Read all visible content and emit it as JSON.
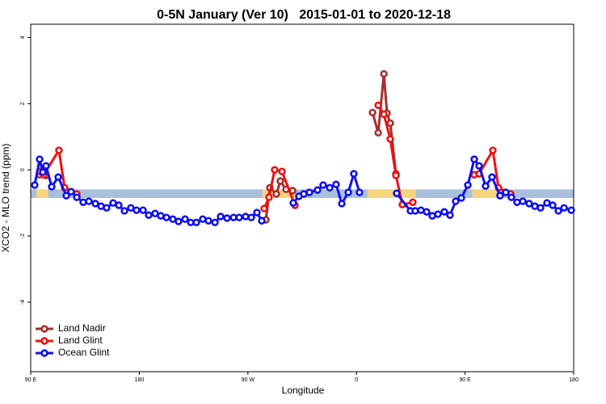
{
  "chart_data": {
    "type": "line",
    "title": "0-5N January (Ver 10)   2015-01-01 to 2020-12-18",
    "x_label": "Longitude",
    "y_label": "XCO2 - MLO trend (ppm)",
    "xlim": [
      90,
      540
    ],
    "ylim": [
      -6.1,
      4.4
    ],
    "xticks": [
      {
        "value": 90,
        "label": "90 E"
      },
      {
        "value": 180,
        "label": "180"
      },
      {
        "value": 270,
        "label": "90 W"
      },
      {
        "value": 360,
        "label": "0"
      },
      {
        "value": 450,
        "label": "90 E"
      },
      {
        "value": 540,
        "label": "180"
      }
    ],
    "yticks": [
      4,
      2,
      0,
      -2,
      -4
    ],
    "legend": "bottom-left",
    "band": {
      "range": [
        -0.85,
        -0.59
      ],
      "color": "#a9bfdc",
      "span_color": "#f7d57e",
      "spans": [
        [
          94.7,
          104.7
        ],
        [
          282,
          309
        ],
        [
          369,
          409
        ],
        [
          456,
          476
        ]
      ]
    },
    "series": [
      {
        "name": "Land Nadir",
        "color": "#a3302f",
        "x": [
          97.4,
          100,
          102.7,
          null,
          284.9,
          288.2,
          293.6,
          296.9,
          301.6,
          307.0,
          null,
          373.3,
          378.0,
          382.7,
          385.3,
          388.0,
          392.7
        ],
        "values": [
          -0.15,
          -0.05,
          -0.17,
          null,
          -1.51,
          -0.54,
          -0.73,
          -0.34,
          -0.59,
          -0.63,
          null,
          1.73,
          1.12,
          2.9,
          1.71,
          1.41,
          -0.12
        ]
      },
      {
        "name": "Land Glint",
        "color": "#ee1111",
        "x": [
          97.4,
          100.7,
          113.4,
          118.1,
          128.2,
          null,
          283.5,
          287.5,
          292.2,
          298.3,
          309.0,
          null,
          378.0,
          382.7,
          388.0,
          392.7,
          398.0,
          406.7,
          null,
          457.6,
          461.6,
          473.0,
          477.7,
          487.8
        ],
        "values": [
          -0.05,
          -0.15,
          0.59,
          -0.54,
          -0.73,
          null,
          -1.17,
          -0.83,
          0.0,
          -0.05,
          -1.07,
          null,
          1.95,
          1.68,
          0.93,
          -0.17,
          -1.05,
          -0.98,
          null,
          -0.15,
          -0.12,
          0.59,
          -0.54,
          -0.73
        ]
      },
      {
        "name": "Ocean Glint",
        "color": "#1111ee",
        "x": [
          93.3,
          97.4,
          100.0,
          102.7,
          107.4,
          112.8,
          119.5,
          123.5,
          128.2,
          133.5,
          138.2,
          143.6,
          148.3,
          152.9,
          158.3,
          163.0,
          167.7,
          173.0,
          177.7,
          183.1,
          187.8,
          193.1,
          197.8,
          202.5,
          207.8,
          212.5,
          217.9,
          222.6,
          227.3,
          232.6,
          237.3,
          242.7,
          247.4,
          252.7,
          258.1,
          262.8,
          268.1,
          272.8,
          277.5,
          281.5,
          null,
          307.6,
          312.3,
          316.3,
          321.0,
          327.7,
          332.4,
          337.8,
          343.1,
          347.8,
          353.2,
          357.8,
          362.5,
          null,
          393.3,
          404.7,
          408.7,
          413.4,
          418.1,
          422.8,
          427.5,
          432.8,
          437.5,
          442.2,
          446.9,
          452.3,
          457.6,
          461.6,
          467.0,
          472.3,
          479.0,
          483.7,
          488.4,
          493.1,
          497.8,
          503.1,
          507.8,
          512.5,
          517.9,
          522.6,
          527.3,
          532.0,
          538.0
        ],
        "values": [
          -0.46,
          0.32,
          -0.07,
          0.12,
          -0.51,
          -0.22,
          -0.78,
          -0.66,
          -0.83,
          -0.98,
          -0.95,
          -1.02,
          -1.1,
          -1.15,
          -1.0,
          -1.07,
          -1.24,
          -1.15,
          -1.22,
          -1.22,
          -1.37,
          -1.32,
          -1.39,
          -1.44,
          -1.49,
          -1.56,
          -1.49,
          -1.59,
          -1.59,
          -1.49,
          -1.54,
          -1.59,
          -1.41,
          -1.46,
          -1.44,
          -1.44,
          -1.41,
          -1.44,
          -1.29,
          -1.54,
          null,
          -1.0,
          -0.8,
          -0.73,
          -0.68,
          -0.61,
          -0.46,
          -0.54,
          -0.44,
          -1.02,
          -0.68,
          -0.12,
          -0.68,
          null,
          -0.71,
          -1.24,
          -1.24,
          -1.22,
          -1.27,
          -1.39,
          -1.34,
          -1.27,
          -1.37,
          -0.95,
          -0.85,
          -0.46,
          0.32,
          0.12,
          -0.49,
          -0.22,
          -0.78,
          -0.68,
          -0.83,
          -0.98,
          -0.95,
          -1.02,
          -1.1,
          -1.15,
          -1.0,
          -1.07,
          -1.24,
          -1.15,
          -1.22
        ]
      }
    ]
  }
}
